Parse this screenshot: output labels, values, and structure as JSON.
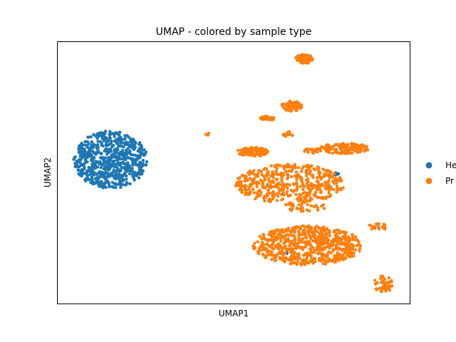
{
  "chart_data": {
    "type": "scatter",
    "title": "UMAP - colored by sample type",
    "xlabel": "UMAP1",
    "ylabel": "UMAP2",
    "grid": false,
    "show_ticks": false,
    "xlim": [
      0,
      100
    ],
    "ylim": [
      0,
      100
    ],
    "legend_position": "right (outside plot, clipped)",
    "series": [
      {
        "name": "He",
        "color": "#1f77b4",
        "clusters": [
          {
            "cx": 15.0,
            "cy": 55.0,
            "rx": 10.5,
            "ry": 11.0,
            "n": 700
          },
          {
            "cx": 65.0,
            "cy": 19.5,
            "rx": 0.5,
            "ry": 0.5,
            "n": 4
          },
          {
            "cx": 79.3,
            "cy": 49.6,
            "rx": 0.6,
            "ry": 0.6,
            "n": 6
          }
        ]
      },
      {
        "name": "Pr",
        "color": "#ff7f0e",
        "clusters": [
          {
            "cx": 70.0,
            "cy": 93.5,
            "rx": 2.6,
            "ry": 1.8,
            "n": 80
          },
          {
            "cx": 66.5,
            "cy": 75.5,
            "rx": 3.0,
            "ry": 1.9,
            "n": 80
          },
          {
            "cx": 59.5,
            "cy": 70.8,
            "rx": 2.0,
            "ry": 0.9,
            "n": 30
          },
          {
            "cx": 65.5,
            "cy": 64.8,
            "rx": 1.5,
            "ry": 1.1,
            "n": 14
          },
          {
            "cx": 42.5,
            "cy": 64.8,
            "rx": 0.6,
            "ry": 0.6,
            "n": 3
          },
          {
            "cx": 55.5,
            "cy": 58.0,
            "rx": 4.5,
            "ry": 1.8,
            "n": 100
          },
          {
            "cx": 72.5,
            "cy": 58.5,
            "rx": 2.5,
            "ry": 1.0,
            "n": 20
          },
          {
            "cx": 81.5,
            "cy": 59.3,
            "rx": 7.0,
            "ry": 2.0,
            "n": 120
          },
          {
            "cx": 66.0,
            "cy": 45.8,
            "rx": 15.5,
            "ry": 7.5,
            "n": 450
          },
          {
            "cx": 70.0,
            "cy": 37.0,
            "rx": 6.5,
            "ry": 1.8,
            "n": 30
          },
          {
            "cx": 71.0,
            "cy": 22.2,
            "rx": 15.5,
            "ry": 7.5,
            "n": 650
          },
          {
            "cx": 91.0,
            "cy": 29.5,
            "rx": 3.0,
            "ry": 1.3,
            "n": 20
          },
          {
            "cx": 92.5,
            "cy": 7.5,
            "rx": 2.7,
            "ry": 3.5,
            "n": 45
          }
        ]
      }
    ]
  }
}
